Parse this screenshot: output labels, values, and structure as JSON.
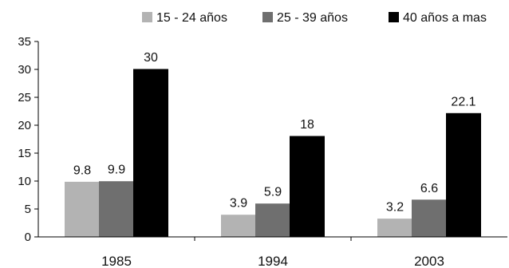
{
  "chart_data": {
    "type": "bar",
    "title": "",
    "xlabel": "",
    "ylabel": "",
    "categories": [
      "1985",
      "1994",
      "2003"
    ],
    "series": [
      {
        "name": "15 - 24 años",
        "values": [
          9.8,
          3.9,
          3.2
        ],
        "labels": [
          "9.8",
          "3.9",
          "3.2"
        ],
        "color": "#b3b3b3"
      },
      {
        "name": "25 - 39 años",
        "values": [
          9.9,
          5.9,
          6.6
        ],
        "labels": [
          "9.9",
          "5.9",
          "6.6"
        ],
        "color": "#6f6f6f"
      },
      {
        "name": "40 años a mas",
        "values": [
          30,
          18,
          22.1
        ],
        "labels": [
          "30",
          "18",
          "22.1"
        ],
        "color": "#000000"
      }
    ],
    "ylim": [
      0,
      35
    ],
    "yticks": [
      "0",
      "5",
      "10",
      "15",
      "20",
      "25",
      "30",
      "35"
    ],
    "grid": false,
    "legend": "top"
  }
}
